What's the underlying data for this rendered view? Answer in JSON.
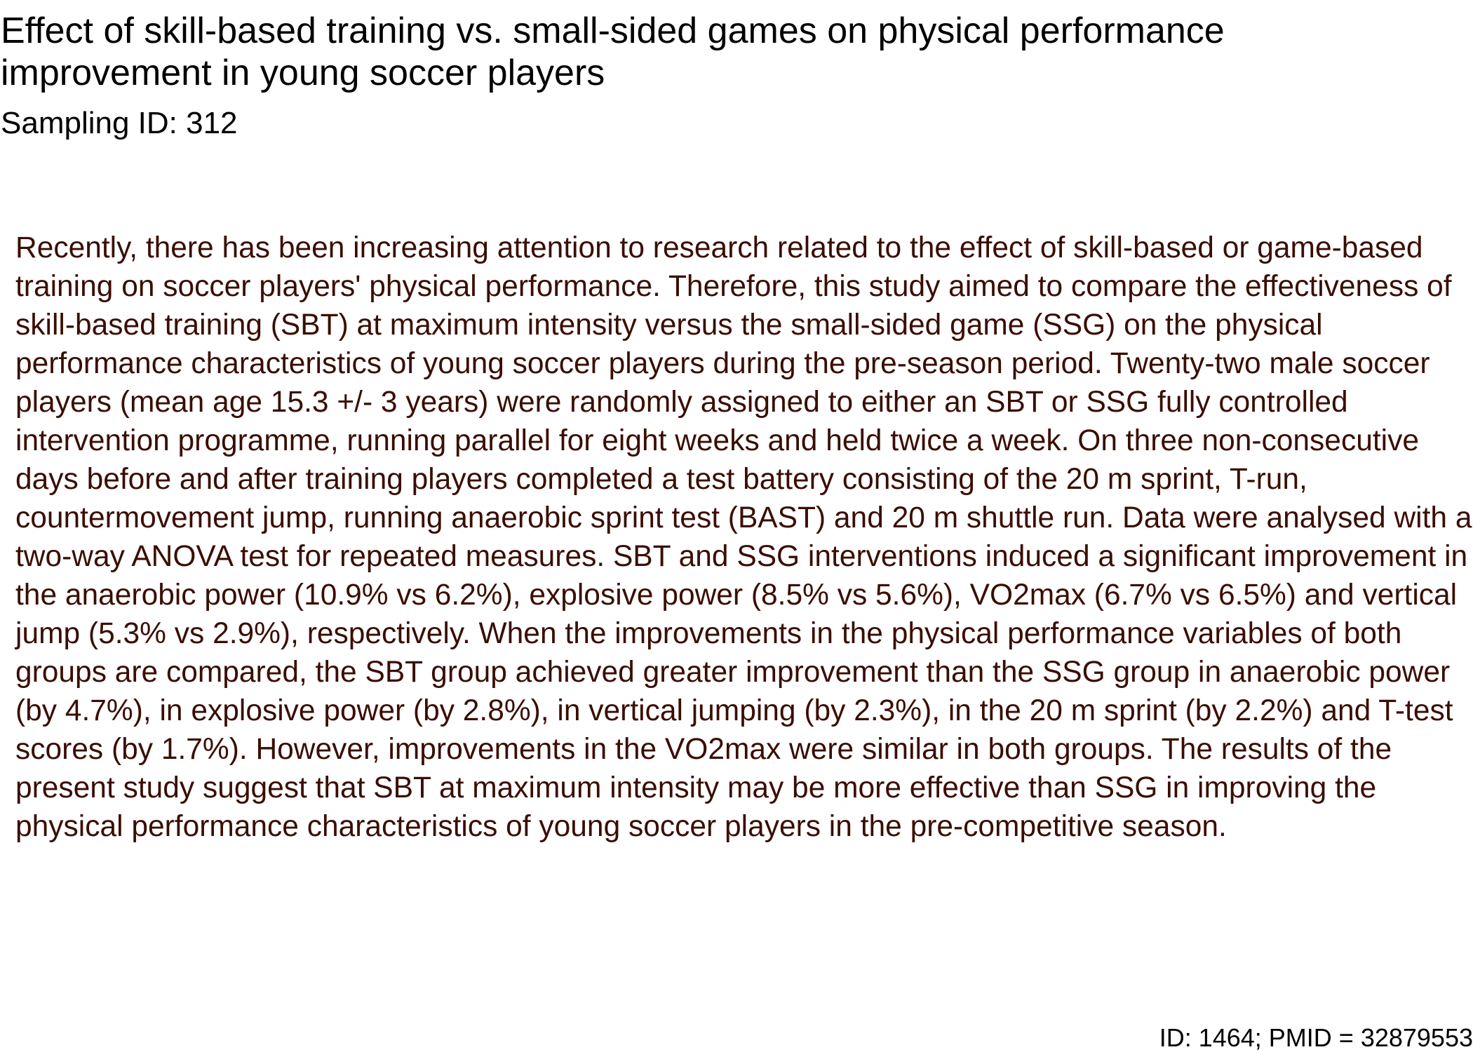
{
  "document": {
    "title": "Effect of skill-based training vs. small-sided games on physical performance improvement in young soccer players",
    "sampling_label": "Sampling ID: 312",
    "abstract": "Recently, there has been increasing attention to research related to the effect of skill-based or game-based training on soccer players' physical performance. Therefore, this study aimed to compare the effectiveness of skill-based training (SBT) at maximum intensity versus the small-sided game (SSG) on the physical performance characteristics of young soccer players during the pre-season period. Twenty-two male soccer players (mean age 15.3 +/- 3 years) were randomly assigned to either an SBT or SSG fully controlled intervention programme, running parallel for eight weeks and held twice a week. On three non-consecutive days before and after training players completed a test battery consisting of the 20 m sprint, T-run, countermovement jump, running anaerobic sprint test (BAST) and 20 m shuttle run. Data were analysed with a two-way ANOVA test for repeated measures. SBT and SSG interventions induced a significant improvement in the anaerobic power (10.9% vs 6.2%), explosive power (8.5% vs 5.6%), VO2max (6.7% vs 6.5%) and vertical jump (5.3% vs 2.9%), respectively. When the improvements in the physical performance variables of both groups are compared, the SBT group achieved greater improvement than the SSG group in anaerobic power (by 4.7%), in explosive power (by 2.8%), in vertical jumping (by 2.3%), in the 20 m sprint (by 2.2%) and T-test scores (by 1.7%). However, improvements in the VO2max were similar in both groups. The results of the present study suggest that SBT at maximum intensity may be more effective than SSG in improving the physical performance characteristics of young soccer players in the pre-competitive season.",
    "footer_id": "ID: 1464; PMID = 32879553"
  },
  "colors": {
    "title_text": "#000000",
    "abstract_text": "#3a0e04",
    "background": "#ffffff"
  }
}
